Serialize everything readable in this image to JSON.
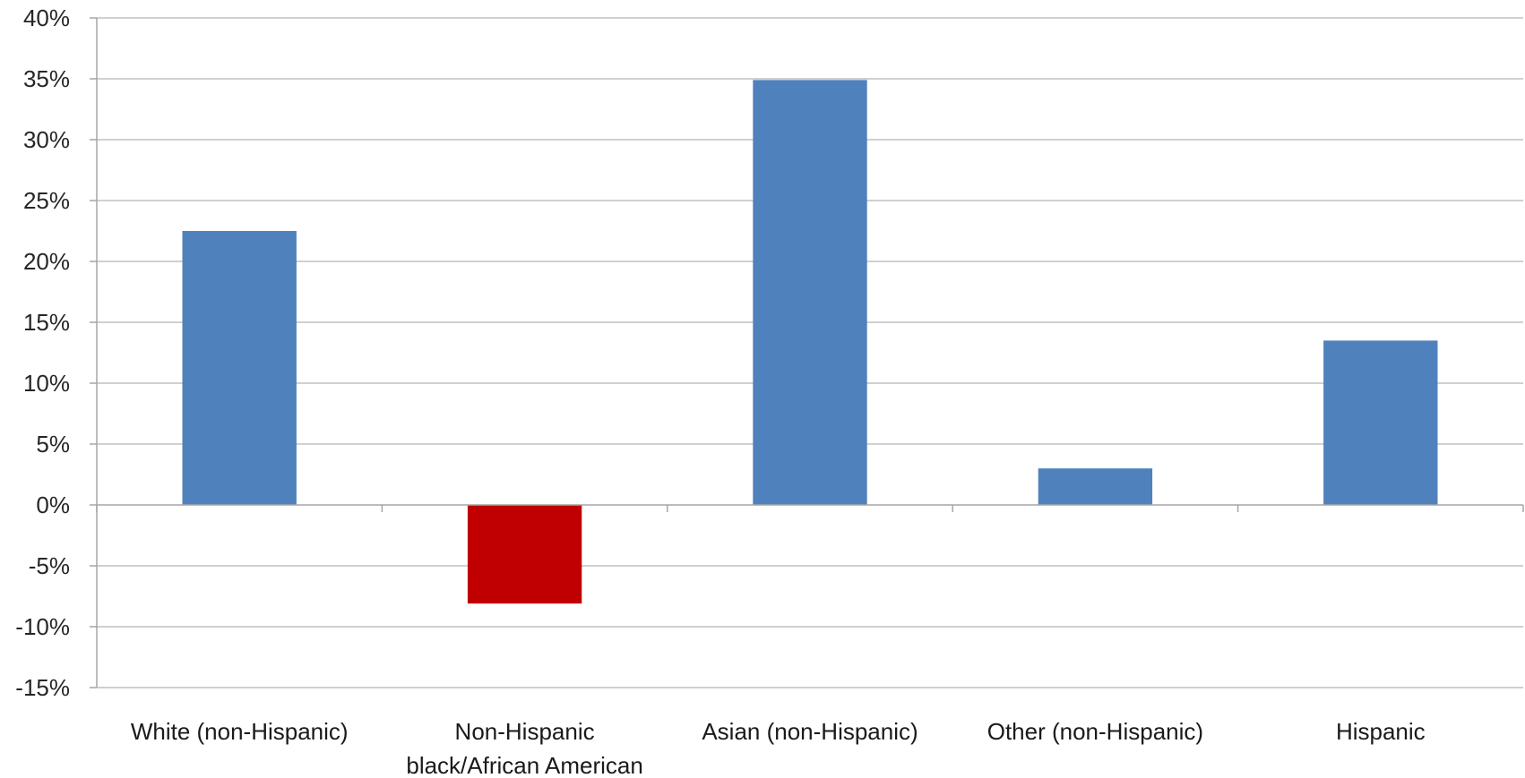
{
  "chart_data": {
    "type": "bar",
    "categories": [
      [
        "White (non-Hispanic)"
      ],
      [
        "Non-Hispanic",
        "black/African American"
      ],
      [
        "Asian (non-Hispanic)"
      ],
      [
        "Other (non-Hispanic)"
      ],
      [
        "Hispanic"
      ]
    ],
    "series": [
      {
        "values": [
          22.5,
          -8.1,
          34.9,
          3.0,
          13.5
        ]
      }
    ],
    "ylim": [
      -15,
      40
    ],
    "ytick_step": 5,
    "ytick_format": "percent",
    "grid": true,
    "colors": {
      "positive": "#4f81bd",
      "negative": "#c00000"
    }
  }
}
